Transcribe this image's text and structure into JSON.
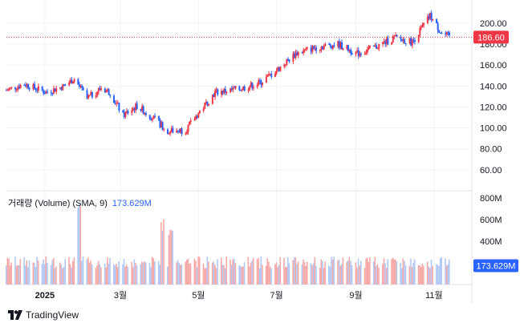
{
  "chart_data": [
    {
      "type": "candlestick",
      "title": "",
      "x_axis": {
        "ticks": [
          "2025",
          "3월",
          "5월",
          "7월",
          "9월",
          "11월"
        ]
      },
      "y_axis": {
        "ticks": [
          "60.00",
          "80.00",
          "100.00",
          "120.00",
          "140.00",
          "160.00",
          "180.00",
          "200.00"
        ],
        "ylim": [
          40,
          216
        ]
      },
      "last_price": {
        "label": "186.60",
        "value": 186.6
      },
      "grid": true,
      "series": [
        {
          "x": "2024-12-02",
          "close": 136
        },
        {
          "x": "2024-12-16",
          "close": 142
        },
        {
          "x": "2025-01-02",
          "close": 134
        },
        {
          "x": "2025-01-16",
          "close": 140
        },
        {
          "x": "2025-01-24",
          "close": 147
        },
        {
          "x": "2025-02-03",
          "close": 128
        },
        {
          "x": "2025-02-14",
          "close": 138
        },
        {
          "x": "2025-02-21",
          "close": 134
        },
        {
          "x": "2025-03-03",
          "close": 112
        },
        {
          "x": "2025-03-14",
          "close": 121
        },
        {
          "x": "2025-03-28",
          "close": 108
        },
        {
          "x": "2025-04-07",
          "close": 97
        },
        {
          "x": "2025-04-21",
          "close": 98
        },
        {
          "x": "2025-05-01",
          "close": 114
        },
        {
          "x": "2025-05-14",
          "close": 134
        },
        {
          "x": "2025-06-02",
          "close": 137
        },
        {
          "x": "2025-06-18",
          "close": 143
        },
        {
          "x": "2025-07-02",
          "close": 156
        },
        {
          "x": "2025-07-16",
          "close": 171
        },
        {
          "x": "2025-08-01",
          "close": 177
        },
        {
          "x": "2025-08-18",
          "close": 180
        },
        {
          "x": "2025-09-02",
          "close": 171
        },
        {
          "x": "2025-09-16",
          "close": 177
        },
        {
          "x": "2025-10-01",
          "close": 186
        },
        {
          "x": "2025-10-15",
          "close": 182
        },
        {
          "x": "2025-10-29",
          "close": 207
        },
        {
          "x": "2025-11-07",
          "close": 190
        },
        {
          "x": "2025-11-14",
          "close": 186.6
        }
      ]
    },
    {
      "type": "bar",
      "title": "거래량 (Volume) (SMA, 9)",
      "sma_value": "173.629M",
      "y_axis": {
        "ticks": [
          "400M",
          "600M",
          "800M"
        ],
        "ylim": [
          0,
          850
        ]
      },
      "series": [
        {
          "x": "2025-01",
          "volume": 180
        },
        {
          "x": "2025-01-27",
          "volume": 760
        },
        {
          "x": "2025-02",
          "volume": 220
        },
        {
          "x": "2025-03",
          "volume": 330
        },
        {
          "x": "2025-04-04",
          "volume": 610
        },
        {
          "x": "2025-04-10",
          "volume": 560
        },
        {
          "x": "2025-05",
          "volume": 220
        },
        {
          "x": "2025-06",
          "volume": 190
        },
        {
          "x": "2025-07",
          "volume": 180
        },
        {
          "x": "2025-08",
          "volume": 170
        },
        {
          "x": "2025-09",
          "volume": 190
        },
        {
          "x": "2025-10",
          "volume": 200
        },
        {
          "x": "2025-11",
          "volume": 230
        }
      ]
    }
  ],
  "volume_legend": {
    "label": "거래량 (Volume) (SMA, 9)",
    "value": "173.629M"
  },
  "footer": {
    "brand": "TradingView"
  },
  "colors": {
    "up": "#f23645",
    "down": "#2962ff",
    "vol_up": "#f7a9a7",
    "vol_down": "#b2c8f5",
    "price_line": "#f23645"
  }
}
